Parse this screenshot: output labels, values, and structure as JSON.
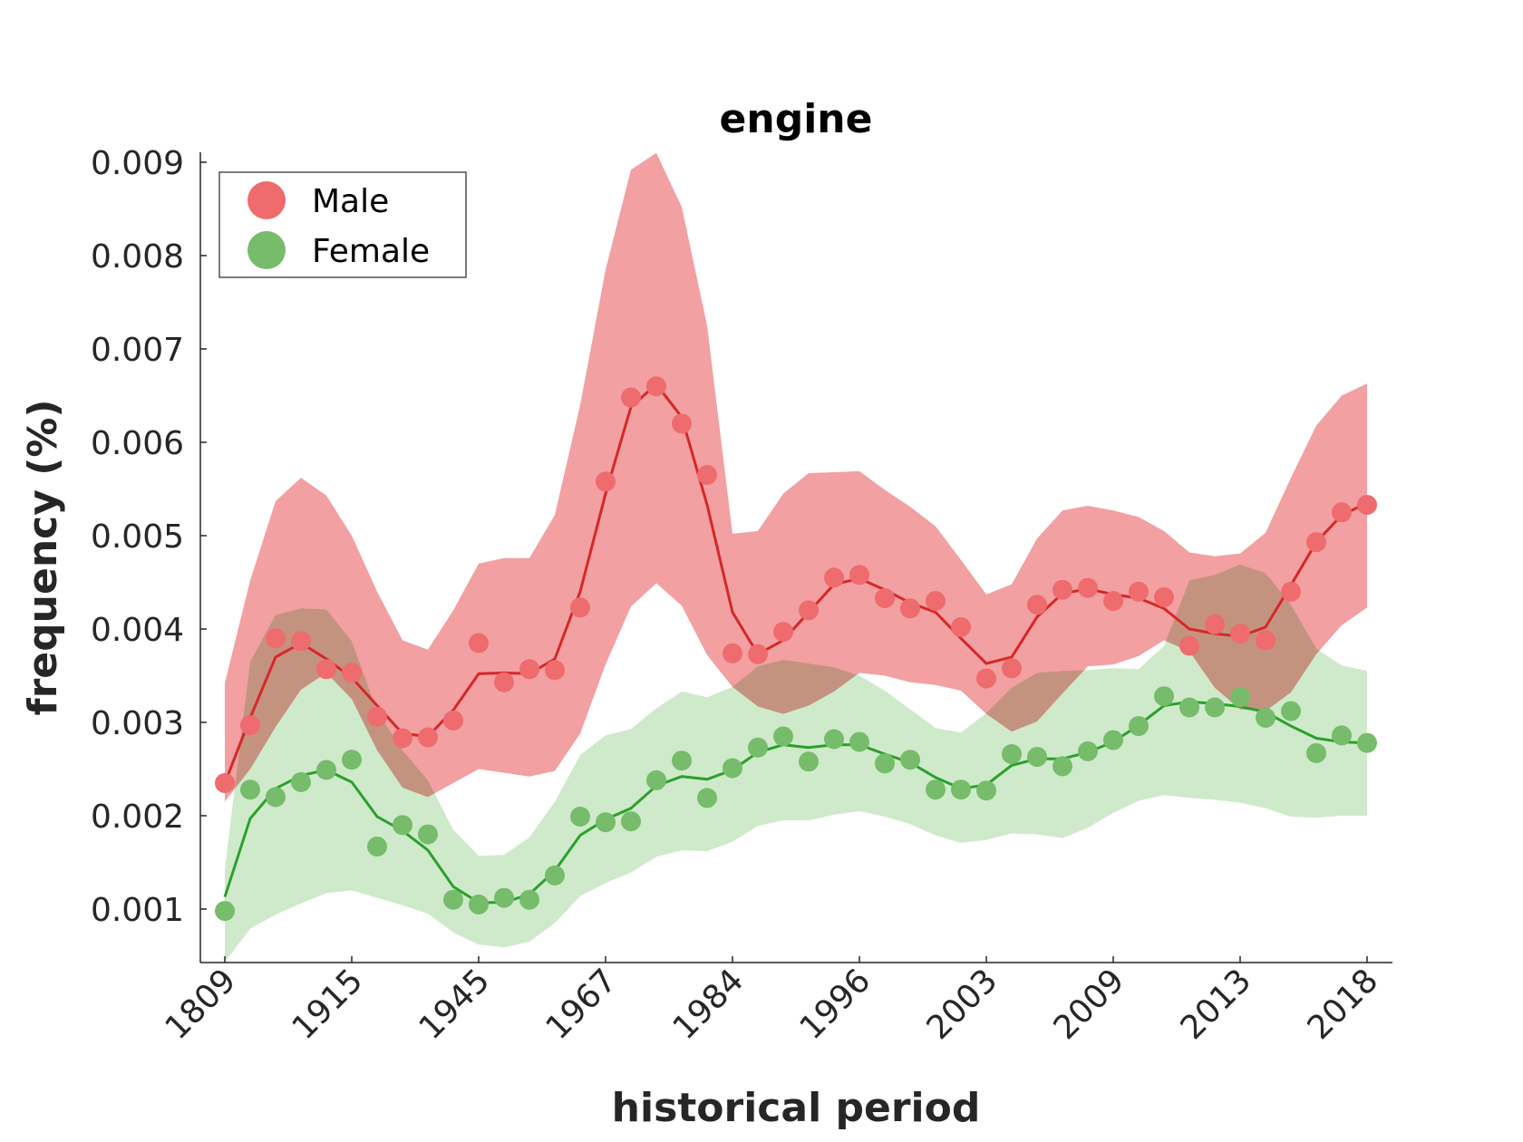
{
  "chart_data": {
    "type": "line",
    "title": "engine",
    "xlabel": "historical period",
    "ylabel": "frequency (%)",
    "ylim": [
      0.0004,
      0.0091
    ],
    "yticks": [
      0.001,
      0.002,
      0.003,
      0.004,
      0.005,
      0.006,
      0.007,
      0.008,
      0.009
    ],
    "ytick_labels": [
      "0.001",
      "0.002",
      "0.003",
      "0.004",
      "0.005",
      "0.006",
      "0.007",
      "0.008",
      "0.009"
    ],
    "xtick_positions": [
      1,
      6,
      11,
      16,
      21,
      26,
      31,
      36,
      41,
      46
    ],
    "xtick_labels": [
      "1809",
      "1915",
      "1945",
      "1967",
      "1984",
      "1996",
      "2003",
      "2009",
      "2013",
      "2018"
    ],
    "x": [
      1,
      2,
      3,
      4,
      5,
      6,
      7,
      8,
      9,
      10,
      11,
      12,
      13,
      14,
      15,
      16,
      17,
      18,
      19,
      20,
      21,
      22,
      23,
      24,
      25,
      26,
      27,
      28,
      29,
      30,
      31,
      32,
      33,
      34,
      35,
      36,
      37,
      38,
      39,
      40,
      41,
      42,
      43,
      44,
      45,
      46
    ],
    "legend": {
      "position": "top-left",
      "entries": [
        "Male",
        "Female"
      ]
    },
    "series": [
      {
        "name": "Male",
        "marker_color": "#ee6b6e",
        "line_color": "#d62728",
        "band_color": "#f2a0a2",
        "points": [
          0.00235,
          0.00297,
          0.0039,
          0.00387,
          0.00357,
          0.00353,
          0.00306,
          0.00283,
          0.00284,
          0.00302,
          0.00385,
          0.00343,
          0.00357,
          0.00356,
          0.00423,
          0.00558,
          0.00648,
          0.0066,
          0.0062,
          0.00565,
          0.00374,
          0.00373,
          0.00397,
          0.0042,
          0.00455,
          0.00458,
          0.00433,
          0.00422,
          0.0043,
          0.00402,
          0.00347,
          0.00358,
          0.00426,
          0.00442,
          0.00444,
          0.0043,
          0.0044,
          0.00434,
          0.00382,
          0.00405,
          0.00395,
          0.00388,
          0.0044,
          0.00493,
          0.00525,
          0.00533
        ],
        "smooth": [
          0.00235,
          0.00305,
          0.0037,
          0.00385,
          0.00368,
          0.00348,
          0.00318,
          0.00288,
          0.00285,
          0.00313,
          0.00352,
          0.00353,
          0.00352,
          0.00368,
          0.0044,
          0.00545,
          0.00638,
          0.00662,
          0.00627,
          0.00533,
          0.00418,
          0.00373,
          0.00388,
          0.00418,
          0.00448,
          0.00454,
          0.00442,
          0.00428,
          0.00418,
          0.0039,
          0.00363,
          0.0037,
          0.00413,
          0.00438,
          0.00443,
          0.00437,
          0.00433,
          0.00422,
          0.004,
          0.00395,
          0.00392,
          0.00402,
          0.00447,
          0.00493,
          0.00522,
          0.00535
        ],
        "upper": [
          0.00342,
          0.00452,
          0.00537,
          0.00562,
          0.00543,
          0.005,
          0.0044,
          0.00388,
          0.00378,
          0.0042,
          0.0047,
          0.00476,
          0.00476,
          0.00522,
          0.0064,
          0.00785,
          0.00892,
          0.0091,
          0.00852,
          0.00725,
          0.00502,
          0.00505,
          0.00545,
          0.00567,
          0.00568,
          0.00569,
          0.00549,
          0.00531,
          0.0051,
          0.00474,
          0.00437,
          0.00448,
          0.00497,
          0.00527,
          0.00532,
          0.00527,
          0.0052,
          0.00505,
          0.00482,
          0.00478,
          0.00481,
          0.00503,
          0.00562,
          0.00618,
          0.0065,
          0.00663
        ],
        "lower": [
          0.00215,
          0.0025,
          0.00295,
          0.00335,
          0.00353,
          0.00325,
          0.0027,
          0.0023,
          0.0022,
          0.00235,
          0.0025,
          0.00246,
          0.00242,
          0.00248,
          0.00288,
          0.00362,
          0.00424,
          0.00449,
          0.00425,
          0.00372,
          0.00338,
          0.00317,
          0.00309,
          0.00318,
          0.00333,
          0.00353,
          0.0035,
          0.00343,
          0.0034,
          0.00334,
          0.00309,
          0.0029,
          0.00301,
          0.00331,
          0.0036,
          0.00362,
          0.00371,
          0.00388,
          0.00376,
          0.00337,
          0.00314,
          0.00312,
          0.00332,
          0.00373,
          0.00404,
          0.00423
        ]
      },
      {
        "name": "Female",
        "marker_color": "#76bc6b",
        "line_color": "#2ca02c",
        "band_color": "#a8d89e",
        "points": [
          0.00098,
          0.00228,
          0.0022,
          0.00236,
          0.00249,
          0.0026,
          0.00167,
          0.0019,
          0.0018,
          0.0011,
          0.00105,
          0.00112,
          0.0011,
          0.00136,
          0.00199,
          0.00193,
          0.00194,
          0.00238,
          0.00259,
          0.00219,
          0.00251,
          0.00273,
          0.00285,
          0.00258,
          0.00282,
          0.00279,
          0.00256,
          0.0026,
          0.00228,
          0.00228,
          0.00227,
          0.00266,
          0.00263,
          0.00253,
          0.00269,
          0.00281,
          0.00296,
          0.00328,
          0.00316,
          0.00316,
          0.00327,
          0.00305,
          0.00312,
          0.00267,
          0.00286,
          0.00278
        ],
        "smooth": [
          0.00113,
          0.00197,
          0.00229,
          0.00243,
          0.00249,
          0.00236,
          0.00199,
          0.00184,
          0.00163,
          0.00124,
          0.00107,
          0.00107,
          0.00116,
          0.00141,
          0.00179,
          0.00196,
          0.00208,
          0.00232,
          0.00242,
          0.00239,
          0.00249,
          0.00268,
          0.00276,
          0.00273,
          0.00276,
          0.00276,
          0.00266,
          0.00257,
          0.00241,
          0.00229,
          0.00233,
          0.00254,
          0.00261,
          0.00261,
          0.00268,
          0.00279,
          0.00297,
          0.00318,
          0.00322,
          0.0032,
          0.00317,
          0.00311,
          0.00296,
          0.00283,
          0.00279,
          0.00278
        ]
      }
    ],
    "female_band": {
      "upper": [
        0.00143,
        0.00365,
        0.00415,
        0.00422,
        0.00421,
        0.00387,
        0.00312,
        0.0027,
        0.00238,
        0.00185,
        0.00157,
        0.00158,
        0.00177,
        0.00215,
        0.00265,
        0.00286,
        0.00293,
        0.00315,
        0.00333,
        0.00327,
        0.00338,
        0.0036,
        0.00367,
        0.00363,
        0.00359,
        0.0035,
        0.00334,
        0.00314,
        0.00294,
        0.00289,
        0.0031,
        0.00337,
        0.00353,
        0.00355,
        0.00356,
        0.00358,
        0.00357,
        0.00382,
        0.00452,
        0.00458,
        0.00469,
        0.0046,
        0.00426,
        0.00379,
        0.00361,
        0.00355
      ],
      "lower": [
        0.00043,
        0.00079,
        0.00094,
        0.00106,
        0.00117,
        0.0012,
        0.00112,
        0.00104,
        0.00095,
        0.00075,
        0.00062,
        0.00059,
        0.00065,
        0.00085,
        0.00114,
        0.00128,
        0.00139,
        0.00156,
        0.00163,
        0.00162,
        0.00172,
        0.00189,
        0.00195,
        0.00195,
        0.00201,
        0.00205,
        0.00199,
        0.00191,
        0.00179,
        0.00171,
        0.00174,
        0.00181,
        0.0018,
        0.00176,
        0.00187,
        0.00203,
        0.00216,
        0.00222,
        0.00219,
        0.00217,
        0.00214,
        0.00208,
        0.00199,
        0.00198,
        0.002,
        0.002
      ]
    }
  }
}
